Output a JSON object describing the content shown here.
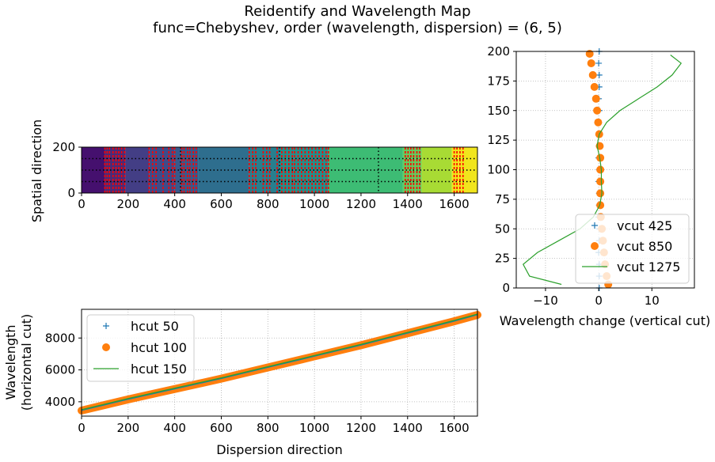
{
  "figure": {
    "title_line1": "Reidentify and Wavelength Map",
    "title_line2": "func=Chebyshev, order (wavelength, dispersion) = (6, 5)"
  },
  "chart_data": [
    {
      "id": "map",
      "type": "heatmap",
      "xlim": [
        0,
        1700
      ],
      "ylim": [
        0,
        200
      ],
      "xticks": [
        0,
        200,
        400,
        600,
        800,
        1000,
        1200,
        1400,
        1600
      ],
      "yticks": [
        0,
        200
      ],
      "ylabel": "Spatial direction",
      "colormap": "viridis",
      "bands": [
        {
          "x0": 0,
          "x1": 100,
          "color": "#45106e"
        },
        {
          "x0": 100,
          "x1": 190,
          "color": "#472c7a"
        },
        {
          "x0": 190,
          "x1": 290,
          "color": "#433e85"
        },
        {
          "x0": 290,
          "x1": 400,
          "color": "#3e4c8a"
        },
        {
          "x0": 400,
          "x1": 500,
          "color": "#375a8c"
        },
        {
          "x0": 500,
          "x1": 720,
          "color": "#2e6e8e"
        },
        {
          "x0": 720,
          "x1": 850,
          "color": "#277f8e"
        },
        {
          "x0": 850,
          "x1": 1060,
          "color": "#21918c"
        },
        {
          "x0": 1060,
          "x1": 1380,
          "color": "#3dbc74"
        },
        {
          "x0": 1380,
          "x1": 1460,
          "color": "#65cb5e"
        },
        {
          "x0": 1460,
          "x1": 1590,
          "color": "#a8db34"
        },
        {
          "x0": 1590,
          "x1": 1700,
          "color": "#f1e51d"
        }
      ],
      "line_markers_x": [
        100,
        110,
        120,
        135,
        148,
        160,
        172,
        185,
        290,
        305,
        320,
        350,
        375,
        390,
        400,
        430,
        440,
        455,
        465,
        480,
        492,
        720,
        735,
        748,
        780,
        795,
        808,
        840,
        860,
        875,
        890,
        905,
        915,
        930,
        945,
        960,
        975,
        990,
        1005,
        1020,
        1035,
        1050,
        1060,
        1390,
        1402,
        1414,
        1426,
        1440,
        1452,
        1600,
        1612,
        1625,
        1638
      ],
      "vcut_lines_x": [
        425,
        850,
        1275
      ],
      "hcut_lines_y": [
        50,
        100,
        150
      ]
    },
    {
      "id": "vertical-cut",
      "type": "line",
      "xlabel": "Wavelength change (vertical cut)",
      "xlim": [
        -15.5,
        18
      ],
      "ylim": [
        0,
        200
      ],
      "xticks": [
        -10,
        0,
        10
      ],
      "yticks": [
        0,
        25,
        50,
        75,
        100,
        125,
        150,
        175,
        200
      ],
      "grid": true,
      "legend": "lower-right",
      "series": [
        {
          "name": "vcut 425",
          "marker": "plus",
          "color": "#1f77b4",
          "y": [
            0,
            10,
            20,
            30,
            40,
            50,
            60,
            70,
            80,
            90,
            100,
            110,
            120,
            130,
            140,
            150,
            160,
            170,
            180,
            190,
            200
          ],
          "x": [
            0.1,
            0.1,
            0.1,
            0.0,
            0.1,
            0.1,
            0.0,
            0.1,
            0.1,
            0.0,
            0.1,
            0.0,
            0.1,
            0.1,
            0.0,
            0.1,
            0.0,
            0.1,
            0.1,
            0.0,
            0.1
          ]
        },
        {
          "name": "vcut 850",
          "marker": "circle",
          "color": "#ff7f0e",
          "y": [
            3,
            10,
            20,
            30,
            40,
            50,
            60,
            70,
            80,
            90,
            100,
            110,
            120,
            130,
            140,
            150,
            160,
            170,
            180,
            190,
            198
          ],
          "x": [
            1.8,
            1.5,
            1.2,
            1.0,
            0.8,
            0.6,
            0.4,
            0.3,
            0.3,
            0.3,
            0.3,
            0.3,
            0.2,
            0.1,
            -0.1,
            -0.3,
            -0.5,
            -0.8,
            -1.1,
            -1.4,
            -1.7
          ]
        },
        {
          "name": "vcut 1275",
          "marker": "none",
          "color": "#2ca02c",
          "y": [
            3,
            10,
            20,
            30,
            40,
            50,
            60,
            70,
            80,
            90,
            100,
            110,
            120,
            130,
            140,
            150,
            160,
            170,
            180,
            190,
            197
          ],
          "x": [
            -7.0,
            -13.0,
            -14.2,
            -11.5,
            -7.5,
            -3.5,
            -1.0,
            0.2,
            0.6,
            0.5,
            0.5,
            0.2,
            -0.3,
            0.1,
            1.5,
            4.0,
            7.5,
            11.0,
            13.8,
            15.5,
            13.5
          ]
        }
      ]
    },
    {
      "id": "horizontal-cut",
      "type": "line",
      "xlabel": "Dispersion direction",
      "ylabel": "Wavelength\n(horizontal cut)",
      "xlim": [
        0,
        1700
      ],
      "ylim": [
        3100,
        9800
      ],
      "xticks": [
        0,
        200,
        400,
        600,
        800,
        1000,
        1200,
        1400,
        1600
      ],
      "yticks": [
        4000,
        6000,
        8000
      ],
      "grid": true,
      "legend": "upper-left",
      "series": [
        {
          "name": "hcut 50",
          "marker": "plus",
          "color": "#1f77b4",
          "x": [
            0,
            200,
            400,
            600,
            800,
            1000,
            1200,
            1400,
            1600,
            1700
          ],
          "y": [
            3450,
            4150,
            4800,
            5450,
            6150,
            6850,
            7550,
            8300,
            9050,
            9450
          ]
        },
        {
          "name": "hcut 100",
          "marker": "circle",
          "color": "#ff7f0e",
          "x": [
            0,
            200,
            400,
            600,
            800,
            1000,
            1200,
            1400,
            1600,
            1700
          ],
          "y": [
            3450,
            4150,
            4800,
            5450,
            6150,
            6850,
            7550,
            8300,
            9050,
            9450
          ]
        },
        {
          "name": "hcut 150",
          "marker": "none",
          "color": "#2ca02c",
          "x": [
            0,
            200,
            400,
            600,
            800,
            1000,
            1200,
            1400,
            1600,
            1700
          ],
          "y": [
            3500,
            4200,
            4850,
            5500,
            6200,
            6900,
            7600,
            8350,
            9100,
            9500
          ]
        }
      ]
    }
  ]
}
